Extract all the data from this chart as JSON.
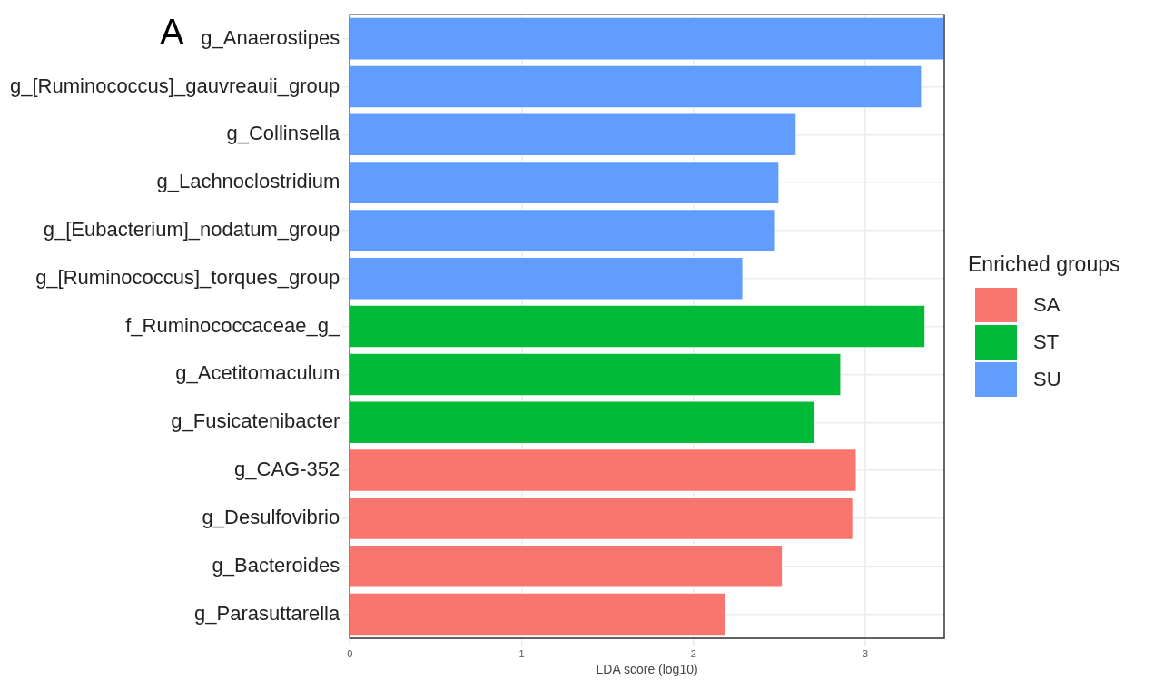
{
  "chart_data": {
    "type": "bar",
    "orientation": "horizontal",
    "xlabel": "LDA score (log10)",
    "legend_title": "Enriched groups",
    "legend": "right",
    "grid": true,
    "annotations": [
      "A"
    ],
    "categories": [
      "g_Anaerostipes",
      "g_[Ruminococcus]_gauvreauii_group",
      "g_Collinsella",
      "g_Lachnoclostridium",
      "g_[Eubacterium]_nodatum_group",
      "g_[Ruminococcus]_torques_group",
      "f_Ruminococcaceae_g_",
      "g_Acetitomaculum",
      "g_Fusicatenibacter",
      "g_CAG-352",
      "g_Desulfovibrio",
      "g_Bacteroides",
      "g_Parasuttarella"
    ],
    "xlim": [
      0,
      3.46
    ],
    "xticks": [
      0,
      1,
      2,
      3
    ],
    "series": [
      {
        "name": "SA",
        "color": "#f8766d",
        "values": [
          null,
          null,
          null,
          null,
          null,
          null,
          null,
          null,
          null,
          2.95,
          2.93,
          2.52,
          2.19
        ]
      },
      {
        "name": "ST",
        "color": "#00ba38",
        "values": [
          null,
          null,
          null,
          null,
          null,
          null,
          3.35,
          2.86,
          2.71,
          null,
          null,
          null,
          null
        ]
      },
      {
        "name": "SU",
        "color": "#619cff",
        "values": [
          3.46,
          3.33,
          2.6,
          2.5,
          2.48,
          2.29,
          null,
          null,
          null,
          null,
          null,
          null,
          null
        ]
      }
    ]
  }
}
